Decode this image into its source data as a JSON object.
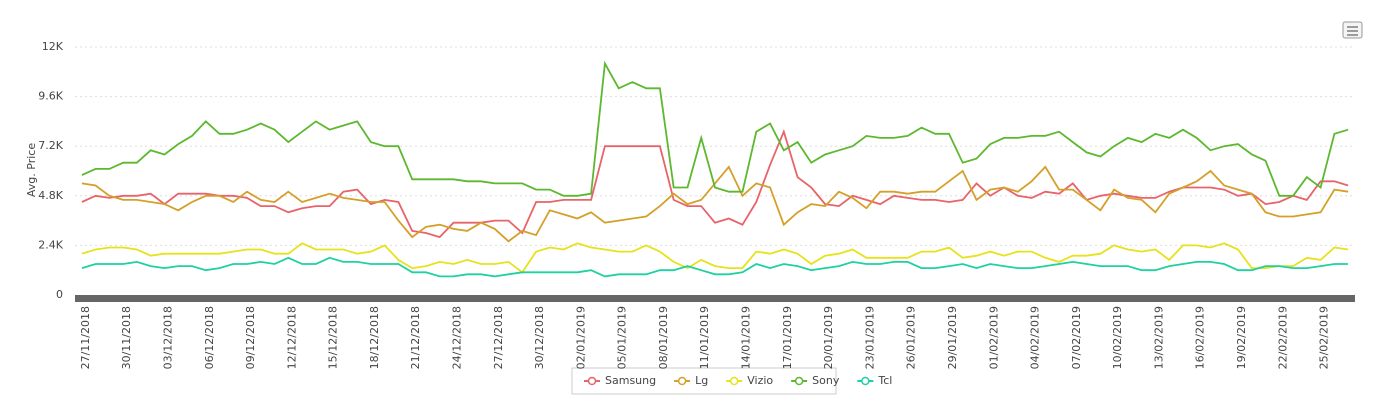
{
  "chart_data": {
    "type": "line",
    "y_label": "Avg. Price",
    "categories": [
      "27/11/2018",
      null,
      null,
      "30/11/2018",
      null,
      null,
      "03/12/2018",
      null,
      null,
      "06/12/2018",
      null,
      null,
      "09/12/2018",
      null,
      null,
      "12/12/2018",
      null,
      null,
      "15/12/2018",
      null,
      null,
      "18/12/2018",
      null,
      null,
      "21/12/2018",
      null,
      null,
      "24/12/2018",
      null,
      null,
      "27/12/2018",
      null,
      null,
      "30/12/2018",
      null,
      null,
      "02/01/2019",
      null,
      null,
      "05/01/2019",
      null,
      null,
      "08/01/2019",
      null,
      null,
      "11/01/2019",
      null,
      null,
      "14/01/2019",
      null,
      null,
      "17/01/2019",
      null,
      null,
      "20/01/2019",
      null,
      null,
      "23/01/2019",
      null,
      null,
      "26/01/2019",
      null,
      null,
      "29/01/2019",
      null,
      null,
      "01/02/2019",
      null,
      null,
      "04/02/2019",
      null,
      null,
      "07/02/2019",
      null,
      null,
      "10/02/2019",
      null,
      null,
      "13/02/2019",
      null,
      null,
      "16/02/2019",
      null,
      null,
      "19/02/2019",
      null,
      null,
      "22/02/2019",
      null,
      null,
      "25/02/2019",
      null,
      null
    ],
    "ylim": [
      0,
      12000
    ],
    "yticks": [
      0,
      {
        "value": 2400,
        "label": "2.4K"
      },
      {
        "value": 4800,
        "label": "4.8K"
      },
      {
        "value": 7200,
        "label": "7.2K"
      },
      {
        "value": 9600,
        "label": "9.6K"
      },
      {
        "value": 12000,
        "label": "12K"
      }
    ],
    "grid": true,
    "legend": "bottom",
    "series": [
      {
        "name": "Samsung",
        "color": "#e8636a",
        "values": [
          4500,
          4800,
          4700,
          4800,
          4800,
          4900,
          4400,
          4900,
          4900,
          4900,
          4800,
          4800,
          4700,
          4300,
          4300,
          4000,
          4200,
          4300,
          4300,
          5000,
          5100,
          4400,
          4600,
          4500,
          3100,
          3000,
          2800,
          3500,
          3500,
          3500,
          3600,
          3600,
          3000,
          4500,
          4500,
          4600,
          4600,
          4600,
          7200,
          7200,
          7200,
          7200,
          7200,
          4600,
          4300,
          4300,
          3500,
          3700,
          3400,
          4500,
          6300,
          7900,
          5700,
          5200,
          4400,
          4300,
          4800,
          4600,
          4400,
          4800,
          4700,
          4600,
          4600,
          4500,
          4600,
          5400,
          4800,
          5200,
          4800,
          4700,
          5000,
          4900,
          5400,
          4600,
          4800,
          4900,
          4800,
          4700,
          4700,
          5000,
          5200,
          5200,
          5200,
          5100,
          4800,
          4900,
          4400,
          4500,
          4800,
          4600,
          5500,
          5500,
          5300
        ]
      },
      {
        "name": "Lg",
        "color": "#d4a02a",
        "values": [
          5400,
          5300,
          4800,
          4600,
          4600,
          4500,
          4400,
          4100,
          4500,
          4800,
          4800,
          4500,
          5000,
          4600,
          4500,
          5000,
          4500,
          4700,
          4900,
          4700,
          4600,
          4500,
          4500,
          3600,
          2800,
          3300,
          3400,
          3200,
          3100,
          3500,
          3200,
          2600,
          3100,
          2900,
          4100,
          3900,
          3700,
          4000,
          3500,
          3600,
          3700,
          3800,
          4300,
          4900,
          4400,
          4600,
          5400,
          6200,
          4800,
          5400,
          5200,
          3400,
          4000,
          4400,
          4300,
          5000,
          4700,
          4200,
          5000,
          5000,
          4900,
          5000,
          5000,
          5500,
          6000,
          4600,
          5100,
          5200,
          5000,
          5500,
          6200,
          5100,
          5100,
          4600,
          4100,
          5100,
          4700,
          4600,
          4000,
          4900,
          5200,
          5500,
          6000,
          5300,
          5100,
          4900,
          4000,
          3800,
          3800,
          3900,
          4000,
          5100,
          5000
        ]
      },
      {
        "name": "Vizio",
        "color": "#e6e21c",
        "values": [
          2000,
          2200,
          2300,
          2300,
          2200,
          1900,
          2000,
          2000,
          2000,
          2000,
          2000,
          2100,
          2200,
          2200,
          2000,
          2000,
          2500,
          2200,
          2200,
          2200,
          2000,
          2100,
          2400,
          1700,
          1300,
          1400,
          1600,
          1500,
          1700,
          1500,
          1500,
          1600,
          1100,
          2100,
          2300,
          2200,
          2500,
          2300,
          2200,
          2100,
          2100,
          2400,
          2100,
          1600,
          1300,
          1700,
          1400,
          1300,
          1300,
          2100,
          2000,
          2200,
          2000,
          1500,
          1900,
          2000,
          2200,
          1800,
          1800,
          1800,
          1800,
          2100,
          2100,
          2300,
          1800,
          1900,
          2100,
          1900,
          2100,
          2100,
          1800,
          1600,
          1900,
          1900,
          2000,
          2400,
          2200,
          2100,
          2200,
          1700,
          2400,
          2400,
          2300,
          2500,
          2200,
          1300,
          1300,
          1400,
          1400,
          1800,
          1700,
          2300,
          2200
        ]
      },
      {
        "name": "Sony",
        "color": "#5cb82e",
        "values": [
          5800,
          6100,
          6100,
          6400,
          6400,
          7000,
          6800,
          7300,
          7700,
          8400,
          7800,
          7800,
          8000,
          8300,
          8000,
          7400,
          7900,
          8400,
          8000,
          8200,
          8400,
          7400,
          7200,
          7200,
          5600,
          5600,
          5600,
          5600,
          5500,
          5500,
          5400,
          5400,
          5400,
          5100,
          5100,
          4800,
          4800,
          4900,
          11200,
          10000,
          10300,
          10000,
          10000,
          5200,
          5200,
          7600,
          5200,
          5000,
          5000,
          7900,
          8300,
          7000,
          7400,
          6400,
          6800,
          7000,
          7200,
          7700,
          7600,
          7600,
          7700,
          8100,
          7800,
          7800,
          6400,
          6600,
          7300,
          7600,
          7600,
          7700,
          7700,
          7900,
          7400,
          6900,
          6700,
          7200,
          7600,
          7400,
          7800,
          7600,
          8000,
          7600,
          7000,
          7200,
          7300,
          6800,
          6500,
          4800,
          4800,
          5700,
          5200,
          7800,
          8000
        ]
      },
      {
        "name": "Tcl",
        "color": "#1fd1a0",
        "values": [
          1300,
          1500,
          1500,
          1500,
          1600,
          1400,
          1300,
          1400,
          1400,
          1200,
          1300,
          1500,
          1500,
          1600,
          1500,
          1800,
          1500,
          1500,
          1800,
          1600,
          1600,
          1500,
          1500,
          1500,
          1100,
          1100,
          900,
          900,
          1000,
          1000,
          900,
          1000,
          1100,
          1100,
          1100,
          1100,
          1100,
          1200,
          900,
          1000,
          1000,
          1000,
          1200,
          1200,
          1400,
          1200,
          1000,
          1000,
          1100,
          1500,
          1300,
          1500,
          1400,
          1200,
          1300,
          1400,
          1600,
          1500,
          1500,
          1600,
          1600,
          1300,
          1300,
          1400,
          1500,
          1300,
          1500,
          1400,
          1300,
          1300,
          1400,
          1500,
          1600,
          1500,
          1400,
          1400,
          1400,
          1200,
          1200,
          1400,
          1500,
          1600,
          1600,
          1500,
          1200,
          1200,
          1400,
          1400,
          1300,
          1300,
          1400,
          1500,
          1500
        ]
      }
    ]
  }
}
